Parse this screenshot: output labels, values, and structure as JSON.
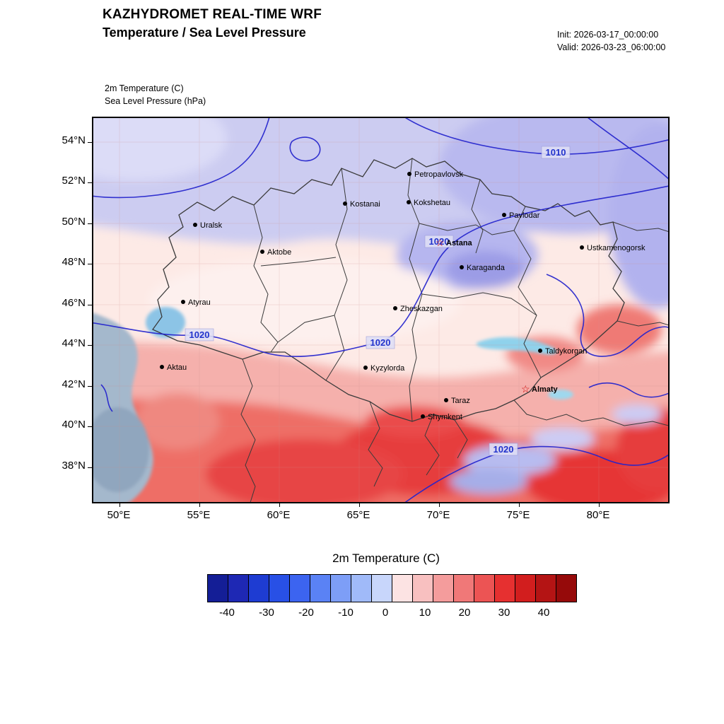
{
  "header": {
    "title": "KAZHYDROMET REAL-TIME WRF",
    "subtitle": "Temperature / Sea Level Pressure",
    "init_label": "Init: 2026-03-17_00:00:00",
    "valid_label": "Valid: 2026-03-23_06:00:00"
  },
  "field_labels": {
    "line1": "2m Temperature   (C)",
    "line2": "Sea Level Pressure   (hPa)"
  },
  "axes": {
    "lat": [
      "54°N",
      "52°N",
      "50°N",
      "48°N",
      "46°N",
      "44°N",
      "42°N",
      "40°N",
      "38°N"
    ],
    "lon": [
      "50°E",
      "55°E",
      "60°E",
      "65°E",
      "70°E",
      "75°E",
      "80°E"
    ]
  },
  "map": {
    "cities": [
      {
        "name": "Uralsk"
      },
      {
        "name": "Aktobe"
      },
      {
        "name": "Atyrau"
      },
      {
        "name": "Aktau"
      },
      {
        "name": "Kostanai"
      },
      {
        "name": "Petropavlovsk"
      },
      {
        "name": "Kokshetau"
      },
      {
        "name": "Pavlodar"
      },
      {
        "name": "Astana"
      },
      {
        "name": "Karaganda"
      },
      {
        "name": "Zheskazgan"
      },
      {
        "name": "Ustkamenogorsk"
      },
      {
        "name": "Kyzylorda"
      },
      {
        "name": "Taldykorgan"
      },
      {
        "name": "Almaty"
      },
      {
        "name": "Taraz"
      },
      {
        "name": "Shymkent"
      }
    ],
    "pressure_labels": [
      "1010",
      "1020",
      "1020",
      "1020",
      "1020"
    ]
  },
  "colorbar": {
    "title": "2m Temperature  (C)",
    "ticks": [
      "-40",
      "-30",
      "-20",
      "-10",
      "0",
      "10",
      "20",
      "30",
      "40"
    ],
    "colors": [
      "#141e96",
      "#1e28b4",
      "#1e3cd2",
      "#2850e6",
      "#3c64f0",
      "#5a82f5",
      "#7d9ef7",
      "#a0baf9",
      "#c8d6fb",
      "#fce3e3",
      "#f8c0c0",
      "#f49c9c",
      "#f07878",
      "#ec5454",
      "#e63030",
      "#d21e1e",
      "#b41414",
      "#960a0a"
    ]
  },
  "colors": {
    "contour": "#2323cd",
    "border": "#3a3a3a",
    "star": "#cc0000",
    "label_box": "#dfdff6"
  }
}
